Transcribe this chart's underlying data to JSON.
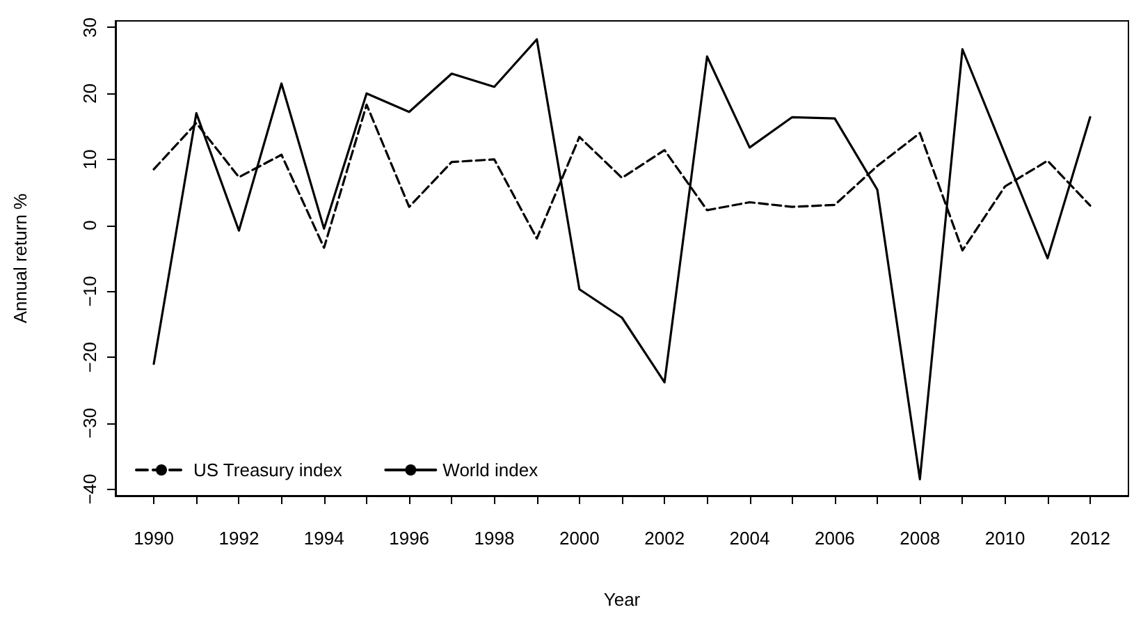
{
  "chart_data": {
    "type": "line",
    "xlabel": "Year",
    "ylabel": "Annual return %",
    "x": [
      1990,
      1991,
      1992,
      1993,
      1994,
      1995,
      1996,
      1997,
      1998,
      1999,
      2000,
      2001,
      2002,
      2003,
      2004,
      2005,
      2006,
      2007,
      2008,
      2009,
      2010,
      2011,
      2012
    ],
    "series": [
      {
        "name": "US Treasury index",
        "color": "#000000",
        "line_style": "dashed",
        "values": [
          8.5,
          15.5,
          7.3,
          10.7,
          -3.4,
          18.3,
          2.8,
          9.6,
          10,
          -2,
          13.4,
          7.2,
          11.4,
          2.3,
          3.5,
          2.8,
          3.1,
          9,
          14,
          -3.8,
          5.9,
          9.8,
          3
        ]
      },
      {
        "name": "World index",
        "color": "#000000",
        "line_style": "solid",
        "values": [
          -21,
          17,
          -0.8,
          21.5,
          -0.5,
          20,
          17.2,
          23,
          21,
          28.2,
          -9.7,
          -14,
          -23.8,
          25.6,
          11.8,
          16.4,
          16.2,
          5.4,
          -38.5,
          26.7,
          10.8,
          -5,
          16.4
        ]
      }
    ],
    "xlim": [
      1989.1,
      2012.9
    ],
    "xticks": [
      1990,
      {
        "value": 1991,
        "label": null
      },
      1992,
      {
        "value": 1993,
        "label": null
      },
      1994,
      {
        "value": 1995,
        "label": null
      },
      1996,
      {
        "value": 1997,
        "label": null
      },
      1998,
      {
        "value": 1999,
        "label": null
      },
      2000,
      {
        "value": 2001,
        "label": null
      },
      2002,
      {
        "value": 2003,
        "label": null
      },
      2004,
      {
        "value": 2005,
        "label": null
      },
      2006,
      {
        "value": 2007,
        "label": null
      },
      2008,
      {
        "value": 2009,
        "label": null
      },
      2010,
      {
        "value": 2011,
        "label": null
      },
      2012
    ],
    "ylim": [
      -41,
      31
    ],
    "yticks": [
      -40,
      -30,
      -20,
      -10,
      0,
      10,
      20,
      30
    ],
    "grid": false,
    "legend": "bottom left",
    "marker": "none"
  }
}
